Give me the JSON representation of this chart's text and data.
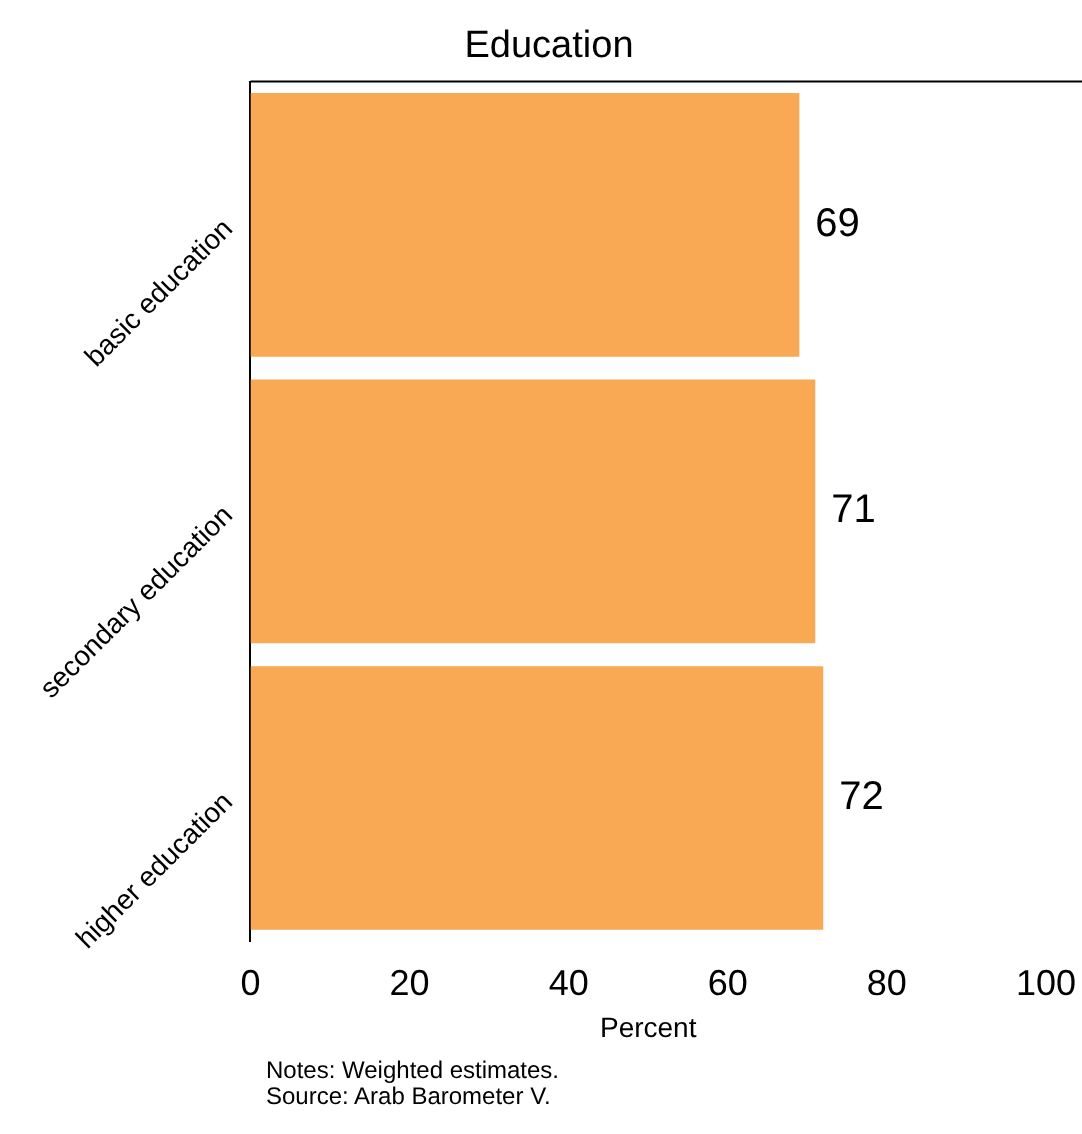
{
  "chart_data": {
    "type": "bar",
    "orientation": "horizontal",
    "title": "Education",
    "xlabel": "Percent",
    "categories": [
      "basic education",
      "secondary education",
      "higher education"
    ],
    "values": [
      69,
      71,
      72
    ],
    "color": "#f9a953",
    "data_labels": true,
    "xlim": [
      0,
      100
    ],
    "xticks": [
      0,
      20,
      40,
      60,
      80,
      100
    ],
    "grid": false,
    "legend": false,
    "annotations": [
      "Notes: Weighted estimates.",
      "Source: Arab Barometer V."
    ]
  }
}
